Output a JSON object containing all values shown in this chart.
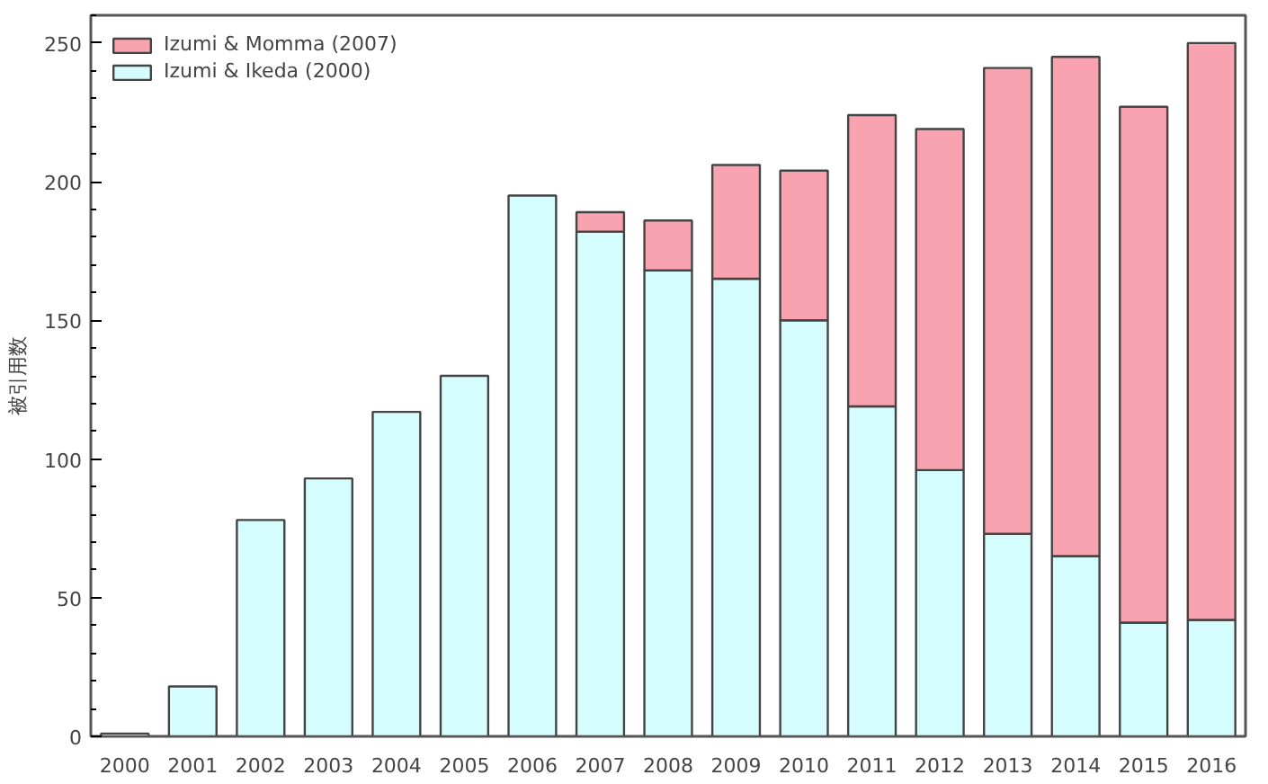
{
  "chart_data": {
    "type": "bar",
    "stacked": true,
    "ylabel": "被引用数",
    "categories": [
      "2000",
      "2001",
      "2002",
      "2003",
      "2004",
      "2005",
      "2006",
      "2007",
      "2008",
      "2009",
      "2010",
      "2011",
      "2012",
      "2013",
      "2014",
      "2015",
      "2016"
    ],
    "series": [
      {
        "name": "Izumi & Ikeda (2000)",
        "color": "#d5fdfd",
        "values": [
          1,
          18,
          78,
          93,
          117,
          130,
          195,
          182,
          168,
          165,
          150,
          119,
          96,
          73,
          65,
          41,
          42
        ]
      },
      {
        "name": "Izumi & Momma (2007)",
        "color": "#f9a3b1",
        "values": [
          null,
          null,
          null,
          null,
          null,
          null,
          null,
          7,
          18,
          41,
          54,
          105,
          123,
          168,
          180,
          186,
          208
        ]
      }
    ],
    "ylim": [
      0,
      260
    ],
    "yticks": [
      0,
      50,
      100,
      150,
      200,
      250
    ],
    "grid": false,
    "legend": "top left"
  }
}
